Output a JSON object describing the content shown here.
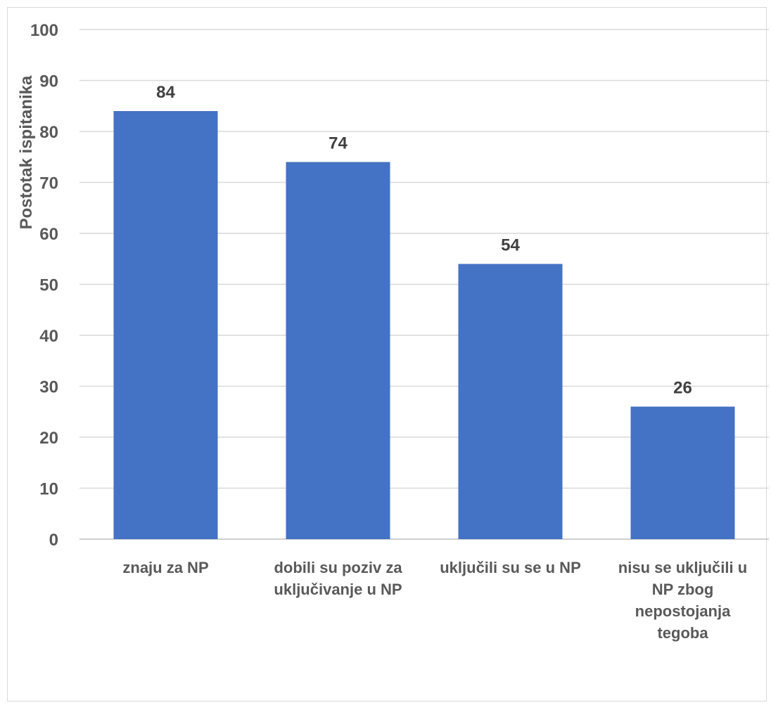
{
  "chart_data": {
    "type": "bar",
    "categories": [
      [
        "znaju za NP"
      ],
      [
        "dobili su poziv za",
        "uključivanje u NP"
      ],
      [
        "uključili su se u NP"
      ],
      [
        "nisu se uključili u",
        "NP zbog",
        "nepostojanja",
        "tegoba"
      ]
    ],
    "values": [
      84,
      74,
      54,
      26
    ],
    "xlabel": "",
    "ylabel": "Postotak ispitanika",
    "ylim": [
      0,
      100
    ],
    "yticks": [
      0,
      10,
      20,
      30,
      40,
      50,
      60,
      70,
      80,
      90,
      100
    ],
    "bar_color": "#4472c4",
    "grid": true,
    "data_labels": true
  }
}
